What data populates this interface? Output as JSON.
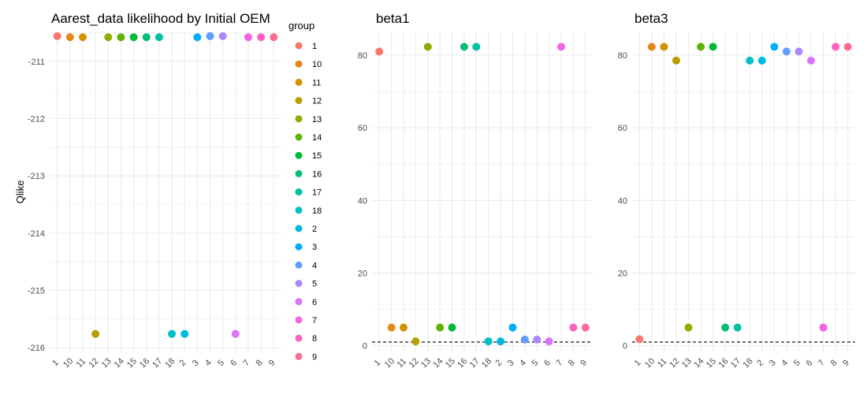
{
  "chart_data": [
    {
      "type": "scatter",
      "title": "Aarest_data likelihood by Initial OEM",
      "xlabel": "",
      "ylabel": "Qlike",
      "ylim": [
        -216.08,
        -210.48
      ],
      "yticks": [
        -216,
        -215,
        -214,
        -213,
        -212,
        -211
      ],
      "grid": true,
      "categories": [
        "1",
        "10",
        "11",
        "12",
        "13",
        "14",
        "15",
        "16",
        "17",
        "18",
        "2",
        "3",
        "4",
        "5",
        "6",
        "7",
        "8",
        "9"
      ],
      "values": [
        -210.56,
        -210.58,
        -210.58,
        -215.76,
        -210.58,
        -210.58,
        -210.58,
        -210.58,
        -210.58,
        -215.76,
        -215.76,
        -210.58,
        -210.56,
        -210.56,
        -215.76,
        -210.58,
        -210.58,
        -210.58
      ]
    },
    {
      "type": "scatter",
      "title": "beta1",
      "xlabel": "",
      "ylabel": "",
      "ylim": [
        -1.8,
        86.5
      ],
      "yticks": [
        0,
        20,
        40,
        60,
        80
      ],
      "grid": true,
      "reference_line": 1,
      "categories": [
        "1",
        "10",
        "11",
        "12",
        "13",
        "14",
        "15",
        "16",
        "17",
        "18",
        "2",
        "3",
        "4",
        "5",
        "6",
        "7",
        "8",
        "9"
      ],
      "values": [
        81,
        5,
        5,
        1.2,
        82.3,
        5,
        5,
        82.3,
        82.3,
        1.2,
        1.2,
        5,
        1.7,
        1.7,
        1.2,
        82.3,
        5,
        5
      ]
    },
    {
      "type": "scatter",
      "title": "beta3",
      "xlabel": "",
      "ylabel": "",
      "ylim": [
        -1.8,
        86.5
      ],
      "yticks": [
        0,
        20,
        40,
        60,
        80
      ],
      "grid": true,
      "reference_line": 1,
      "categories": [
        "1",
        "10",
        "11",
        "12",
        "13",
        "14",
        "15",
        "16",
        "17",
        "18",
        "2",
        "3",
        "4",
        "5",
        "6",
        "7",
        "8",
        "9"
      ],
      "values": [
        1.8,
        82.3,
        82.3,
        78.5,
        5,
        82.3,
        82.3,
        5,
        5,
        78.5,
        78.5,
        82.3,
        81,
        81,
        78.5,
        5,
        82.3,
        82.3
      ]
    }
  ],
  "legend": {
    "title": "group",
    "position": "right of first panel",
    "items": [
      "1",
      "10",
      "11",
      "12",
      "13",
      "14",
      "15",
      "16",
      "17",
      "18",
      "2",
      "3",
      "4",
      "5",
      "6",
      "7",
      "8",
      "9"
    ]
  },
  "colors": {
    "1": "#F8766D",
    "10": "#E7861B",
    "11": "#D39200",
    "12": "#B79F00",
    "13": "#93AA00",
    "14": "#5EB300",
    "15": "#00BA38",
    "16": "#00BF74",
    "17": "#00C19F",
    "18": "#00BFC4",
    "2": "#00B9E3",
    "3": "#00ADFA",
    "4": "#619CFF",
    "5": "#AE87FF",
    "6": "#DB72FB",
    "7": "#F564E3",
    "8": "#FF61C3",
    "9": "#FF6C91",
    "grid": "#ebebeb",
    "text": "#4d4d4d",
    "refline": "#000000"
  }
}
